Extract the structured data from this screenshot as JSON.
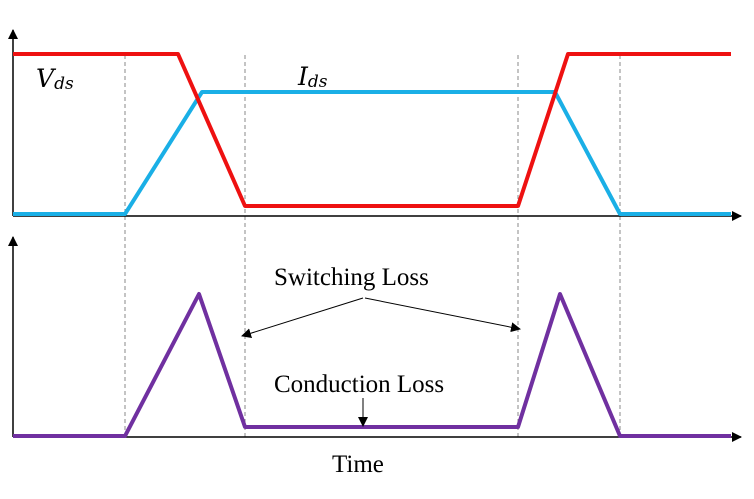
{
  "labels": {
    "vds_main": "V",
    "vds_sub": "ds",
    "ids_main": "I",
    "ids_sub": "ds",
    "switching_loss": "Switching Loss",
    "conduction_loss": "Conduction Loss",
    "time": "Time"
  },
  "colors": {
    "vds": "#ee1111",
    "ids": "#1aafe6",
    "power": "#7030a0",
    "axis": "#000000",
    "guide": "#888888"
  }
}
